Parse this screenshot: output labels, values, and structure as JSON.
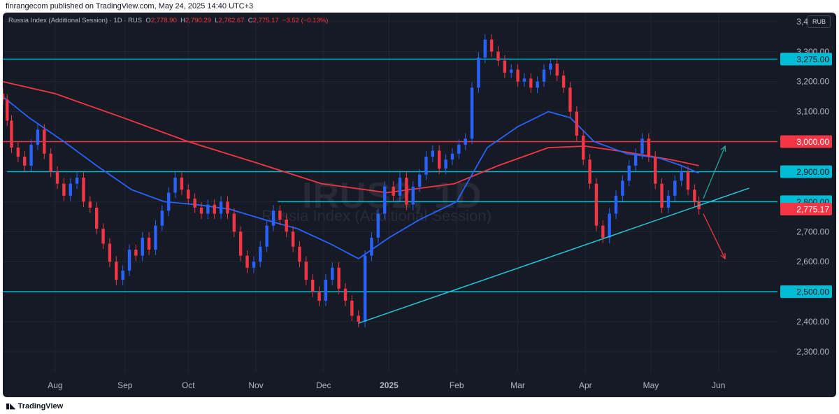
{
  "header": {
    "published_text": "finrangecom published on TradingView.com, May 24, 2025 14:40 UTC+3"
  },
  "legend": {
    "symbol": "Russia Index (Additional Session) · 1D · RUS",
    "o_label": "O",
    "o_value": "2,778.90",
    "h_label": "H",
    "h_value": "2,790.29",
    "l_label": "L",
    "l_value": "2,762.67",
    "c_label": "C",
    "c_value": "2,775.17",
    "change": "−3.52 (−0.13%)"
  },
  "currency": "RUB",
  "watermark": {
    "ticker": "IRUS2, 1D",
    "name": "Russia Index (Additional Session)"
  },
  "footer": {
    "brand": "TradingView"
  },
  "colors": {
    "background": "#161a25",
    "up": "#2962ff",
    "down": "#f23645",
    "ma_fast": "#2962ff",
    "ma_slow": "#f23645",
    "level_cyan": "#00bcd4",
    "level_red": "#f23645",
    "trend_line": "#26c6da",
    "arrow_up": "#26a69a",
    "arrow_down": "#f23645"
  },
  "chart_data": {
    "type": "candlestick",
    "x_axis": {
      "start_date": "2024-07-08",
      "ticks": [
        {
          "label": "Aug",
          "date": "2024-08-01"
        },
        {
          "label": "Sep",
          "date": "2024-09-02"
        },
        {
          "label": "Oct",
          "date": "2024-10-01"
        },
        {
          "label": "Nov",
          "date": "2024-11-01"
        },
        {
          "label": "Dec",
          "date": "2024-12-02"
        },
        {
          "label": "2025",
          "date": "2025-01-01",
          "bold": true
        },
        {
          "label": "Feb",
          "date": "2025-02-01"
        },
        {
          "label": "Mar",
          "date": "2025-03-01"
        },
        {
          "label": "Apr",
          "date": "2025-04-01"
        },
        {
          "label": "May",
          "date": "2025-05-01"
        },
        {
          "label": "Jun",
          "date": "2025-06-01"
        }
      ]
    },
    "y_axis": {
      "range": [
        2230,
        3430
      ],
      "ticks": [
        "2,300.00",
        "2,400.00",
        "2,500.00",
        "2,600.00",
        "2,700.00",
        "2,800.00",
        "2,900.00",
        "3,000.00",
        "3,100.00",
        "3,200.00",
        "3,300.00",
        "3,400.00"
      ]
    },
    "price_labels": [
      {
        "value": 3275,
        "label": "3,275.00",
        "color": "#00bcd4"
      },
      {
        "value": 3000,
        "label": "3,000.00",
        "color": "#f23645"
      },
      {
        "value": 2900,
        "label": "2,900.00",
        "color": "#00bcd4"
      },
      {
        "value": 2800,
        "label": "2,800.00",
        "color": "#00bcd4"
      },
      {
        "value": 2775.17,
        "label": "2,775.17",
        "color": "#f23645"
      },
      {
        "value": 2500,
        "label": "2,500.00",
        "color": "#00bcd4"
      }
    ],
    "levels": [
      {
        "value": 3275,
        "color": "#00bcd4",
        "from": "2024-07-08"
      },
      {
        "value": 3000,
        "color": "#f23645",
        "from": "2024-07-08"
      },
      {
        "value": 2900,
        "color": "#00bcd4",
        "from": "2024-07-10"
      },
      {
        "value": 2800,
        "color": "#00bcd4",
        "from": "2024-11-11"
      },
      {
        "value": 2500,
        "color": "#00bcd4",
        "from": "2024-07-08"
      }
    ],
    "trend_line": {
      "from": {
        "date": "2024-12-18",
        "value": 2395
      },
      "to": {
        "date": "2025-06-15",
        "value": 2845
      }
    },
    "arrows": [
      {
        "direction": "up",
        "from": {
          "date": "2025-05-25",
          "value": 2810
        },
        "to": {
          "date": "2025-06-04",
          "value": 2985
        }
      },
      {
        "direction": "down",
        "from": {
          "date": "2025-05-25",
          "value": 2760
        },
        "to": {
          "date": "2025-06-04",
          "value": 2610
        }
      }
    ],
    "series": [
      {
        "name": "close",
        "points": [
          [
            "2024-07-08",
            3140
          ],
          [
            "2024-07-10",
            3070
          ],
          [
            "2024-07-12",
            2980
          ],
          [
            "2024-07-15",
            2950
          ],
          [
            "2024-07-18",
            2920
          ],
          [
            "2024-07-21",
            2990
          ],
          [
            "2024-07-24",
            3040
          ],
          [
            "2024-07-27",
            2960
          ],
          [
            "2024-07-30",
            2900
          ],
          [
            "2024-08-02",
            2860
          ],
          [
            "2024-08-05",
            2820
          ],
          [
            "2024-08-08",
            2860
          ],
          [
            "2024-08-11",
            2880
          ],
          [
            "2024-08-14",
            2800
          ],
          [
            "2024-08-17",
            2780
          ],
          [
            "2024-08-20",
            2710
          ],
          [
            "2024-08-23",
            2660
          ],
          [
            "2024-08-26",
            2600
          ],
          [
            "2024-08-29",
            2540
          ],
          [
            "2024-09-01",
            2570
          ],
          [
            "2024-09-04",
            2640
          ],
          [
            "2024-09-07",
            2620
          ],
          [
            "2024-09-10",
            2680
          ],
          [
            "2024-09-13",
            2640
          ],
          [
            "2024-09-16",
            2720
          ],
          [
            "2024-09-19",
            2770
          ],
          [
            "2024-09-22",
            2830
          ],
          [
            "2024-09-25",
            2880
          ],
          [
            "2024-09-28",
            2840
          ],
          [
            "2024-10-01",
            2810
          ],
          [
            "2024-10-04",
            2780
          ],
          [
            "2024-10-07",
            2760
          ],
          [
            "2024-10-10",
            2790
          ],
          [
            "2024-10-13",
            2760
          ],
          [
            "2024-10-16",
            2800
          ],
          [
            "2024-10-19",
            2760
          ],
          [
            "2024-10-22",
            2700
          ],
          [
            "2024-10-25",
            2620
          ],
          [
            "2024-10-28",
            2580
          ],
          [
            "2024-10-31",
            2600
          ],
          [
            "2024-11-03",
            2650
          ],
          [
            "2024-11-06",
            2720
          ],
          [
            "2024-11-09",
            2770
          ],
          [
            "2024-11-12",
            2740
          ],
          [
            "2024-11-15",
            2700
          ],
          [
            "2024-11-18",
            2650
          ],
          [
            "2024-11-21",
            2600
          ],
          [
            "2024-11-24",
            2540
          ],
          [
            "2024-11-27",
            2500
          ],
          [
            "2024-11-30",
            2470
          ],
          [
            "2024-12-03",
            2540
          ],
          [
            "2024-12-06",
            2580
          ],
          [
            "2024-12-09",
            2510
          ],
          [
            "2024-12-12",
            2470
          ],
          [
            "2024-12-15",
            2420
          ],
          [
            "2024-12-18",
            2400
          ],
          [
            "2024-12-21",
            2620
          ],
          [
            "2024-12-24",
            2680
          ],
          [
            "2024-12-27",
            2760
          ],
          [
            "2024-12-30",
            2850
          ],
          [
            "2025-01-03",
            2820
          ],
          [
            "2025-01-06",
            2880
          ],
          [
            "2025-01-09",
            2790
          ],
          [
            "2025-01-12",
            2850
          ],
          [
            "2025-01-15",
            2890
          ],
          [
            "2025-01-18",
            2950
          ],
          [
            "2025-01-21",
            2970
          ],
          [
            "2025-01-24",
            2910
          ],
          [
            "2025-01-27",
            2940
          ],
          [
            "2025-01-30",
            2960
          ],
          [
            "2025-02-02",
            2990
          ],
          [
            "2025-02-05",
            3010
          ],
          [
            "2025-02-08",
            3180
          ],
          [
            "2025-02-11",
            3280
          ],
          [
            "2025-02-14",
            3340
          ],
          [
            "2025-02-17",
            3300
          ],
          [
            "2025-02-20",
            3270
          ],
          [
            "2025-02-23",
            3230
          ],
          [
            "2025-02-26",
            3240
          ],
          [
            "2025-03-01",
            3200
          ],
          [
            "2025-03-04",
            3210
          ],
          [
            "2025-03-07",
            3180
          ],
          [
            "2025-03-10",
            3200
          ],
          [
            "2025-03-13",
            3240
          ],
          [
            "2025-03-16",
            3260
          ],
          [
            "2025-03-19",
            3220
          ],
          [
            "2025-03-22",
            3180
          ],
          [
            "2025-03-25",
            3100
          ],
          [
            "2025-03-28",
            3020
          ],
          [
            "2025-03-31",
            2940
          ],
          [
            "2025-04-03",
            2860
          ],
          [
            "2025-04-06",
            2720
          ],
          [
            "2025-04-09",
            2680
          ],
          [
            "2025-04-12",
            2760
          ],
          [
            "2025-04-15",
            2820
          ],
          [
            "2025-04-18",
            2870
          ],
          [
            "2025-04-21",
            2920
          ],
          [
            "2025-04-24",
            2960
          ],
          [
            "2025-04-27",
            3010
          ],
          [
            "2025-04-30",
            2950
          ],
          [
            "2025-05-03",
            2860
          ],
          [
            "2025-05-06",
            2780
          ],
          [
            "2025-05-09",
            2820
          ],
          [
            "2025-05-12",
            2870
          ],
          [
            "2025-05-15",
            2900
          ],
          [
            "2025-05-18",
            2840
          ],
          [
            "2025-05-21",
            2800
          ],
          [
            "2025-05-23",
            2775.17
          ]
        ]
      },
      {
        "name": "ma_fast",
        "points": [
          [
            "2024-07-08",
            3150
          ],
          [
            "2024-07-20",
            3080
          ],
          [
            "2024-08-05",
            3000
          ],
          [
            "2024-08-20",
            2920
          ],
          [
            "2024-09-05",
            2840
          ],
          [
            "2024-09-20",
            2800
          ],
          [
            "2024-10-05",
            2790
          ],
          [
            "2024-10-20",
            2775
          ],
          [
            "2024-11-05",
            2740
          ],
          [
            "2024-11-20",
            2710
          ],
          [
            "2024-12-05",
            2660
          ],
          [
            "2024-12-18",
            2610
          ],
          [
            "2025-01-01",
            2680
          ],
          [
            "2025-01-15",
            2740
          ],
          [
            "2025-02-01",
            2800
          ],
          [
            "2025-02-15",
            2980
          ],
          [
            "2025-03-01",
            3050
          ],
          [
            "2025-03-15",
            3100
          ],
          [
            "2025-03-25",
            3080
          ],
          [
            "2025-04-05",
            3000
          ],
          [
            "2025-04-20",
            2960
          ],
          [
            "2025-05-05",
            2945
          ],
          [
            "2025-05-15",
            2920
          ],
          [
            "2025-05-23",
            2895
          ]
        ]
      },
      {
        "name": "ma_slow",
        "points": [
          [
            "2024-07-08",
            3200
          ],
          [
            "2024-08-01",
            3160
          ],
          [
            "2024-09-01",
            3080
          ],
          [
            "2024-10-01",
            3000
          ],
          [
            "2024-11-01",
            2930
          ],
          [
            "2024-12-01",
            2860
          ],
          [
            "2024-12-31",
            2830
          ],
          [
            "2025-01-31",
            2860
          ],
          [
            "2025-02-20",
            2920
          ],
          [
            "2025-03-15",
            2980
          ],
          [
            "2025-04-01",
            2985
          ],
          [
            "2025-04-20",
            2965
          ],
          [
            "2025-05-10",
            2940
          ],
          [
            "2025-05-23",
            2920
          ]
        ]
      }
    ]
  }
}
